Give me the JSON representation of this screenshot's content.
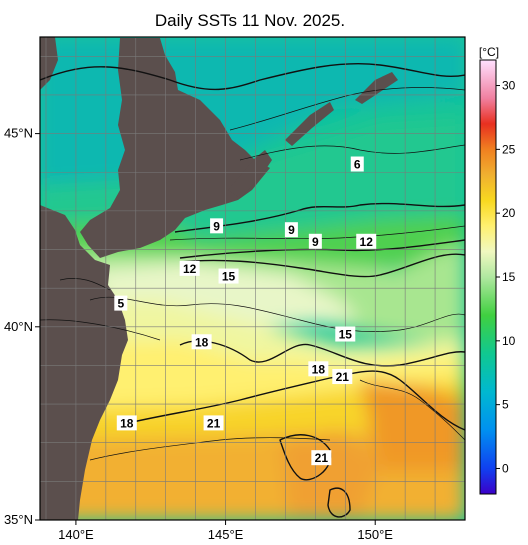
{
  "title": "Daily SSTs 11 Nov. 2025.",
  "colors": {
    "land": "#5b4f4d",
    "grid": "#7a7a7a",
    "contour": "#111111",
    "frame": "#000000"
  },
  "lat_axis": {
    "labels": [
      {
        "value": 45,
        "text": "45°N"
      },
      {
        "value": 40,
        "text": "40°N"
      },
      {
        "value": 35,
        "text": "35°N"
      }
    ]
  },
  "lon_axis": {
    "labels": [
      {
        "value": 140,
        "text": "140°E"
      },
      {
        "value": 145,
        "text": "145°E"
      },
      {
        "value": 150,
        "text": "150°E"
      }
    ]
  },
  "colorbar": {
    "unit": "[°C]",
    "range": [
      -2,
      32
    ],
    "ticks": [
      0,
      5,
      10,
      15,
      20,
      25,
      30
    ],
    "stops": [
      {
        "t": -2,
        "c": "#3b00c8"
      },
      {
        "t": 0,
        "c": "#1040f0"
      },
      {
        "t": 3,
        "c": "#0090f0"
      },
      {
        "t": 6,
        "c": "#00b8d0"
      },
      {
        "t": 9,
        "c": "#10c890"
      },
      {
        "t": 12,
        "c": "#40d040"
      },
      {
        "t": 15,
        "c": "#b0e8a0"
      },
      {
        "t": 17,
        "c": "#f0f8c0"
      },
      {
        "t": 19,
        "c": "#fff070"
      },
      {
        "t": 21,
        "c": "#f8d820"
      },
      {
        "t": 23,
        "c": "#f0b030"
      },
      {
        "t": 25,
        "c": "#f08020"
      },
      {
        "t": 27,
        "c": "#e83020"
      },
      {
        "t": 29,
        "c": "#f080a0"
      },
      {
        "t": 32,
        "c": "#ffe0ff"
      }
    ]
  },
  "contour_labels": [
    {
      "text": "6",
      "lon": 149.4,
      "lat": 44.2
    },
    {
      "text": "9",
      "lon": 144.7,
      "lat": 42.6
    },
    {
      "text": "9",
      "lon": 147.2,
      "lat": 42.5
    },
    {
      "text": "9",
      "lon": 148.0,
      "lat": 42.2
    },
    {
      "text": "12",
      "lon": 149.7,
      "lat": 42.2
    },
    {
      "text": "12",
      "lon": 143.8,
      "lat": 41.5
    },
    {
      "text": "15",
      "lon": 145.1,
      "lat": 41.3
    },
    {
      "text": "5",
      "lon": 141.5,
      "lat": 40.6
    },
    {
      "text": "15",
      "lon": 149.0,
      "lat": 39.8
    },
    {
      "text": "18",
      "lon": 144.2,
      "lat": 39.6
    },
    {
      "text": "18",
      "lon": 148.1,
      "lat": 38.9
    },
    {
      "text": "21",
      "lon": 148.9,
      "lat": 38.7
    },
    {
      "text": "18",
      "lon": 141.7,
      "lat": 37.5
    },
    {
      "text": "21",
      "lon": 144.6,
      "lat": 37.5
    },
    {
      "text": "21",
      "lon": 148.2,
      "lat": 36.6
    }
  ]
}
